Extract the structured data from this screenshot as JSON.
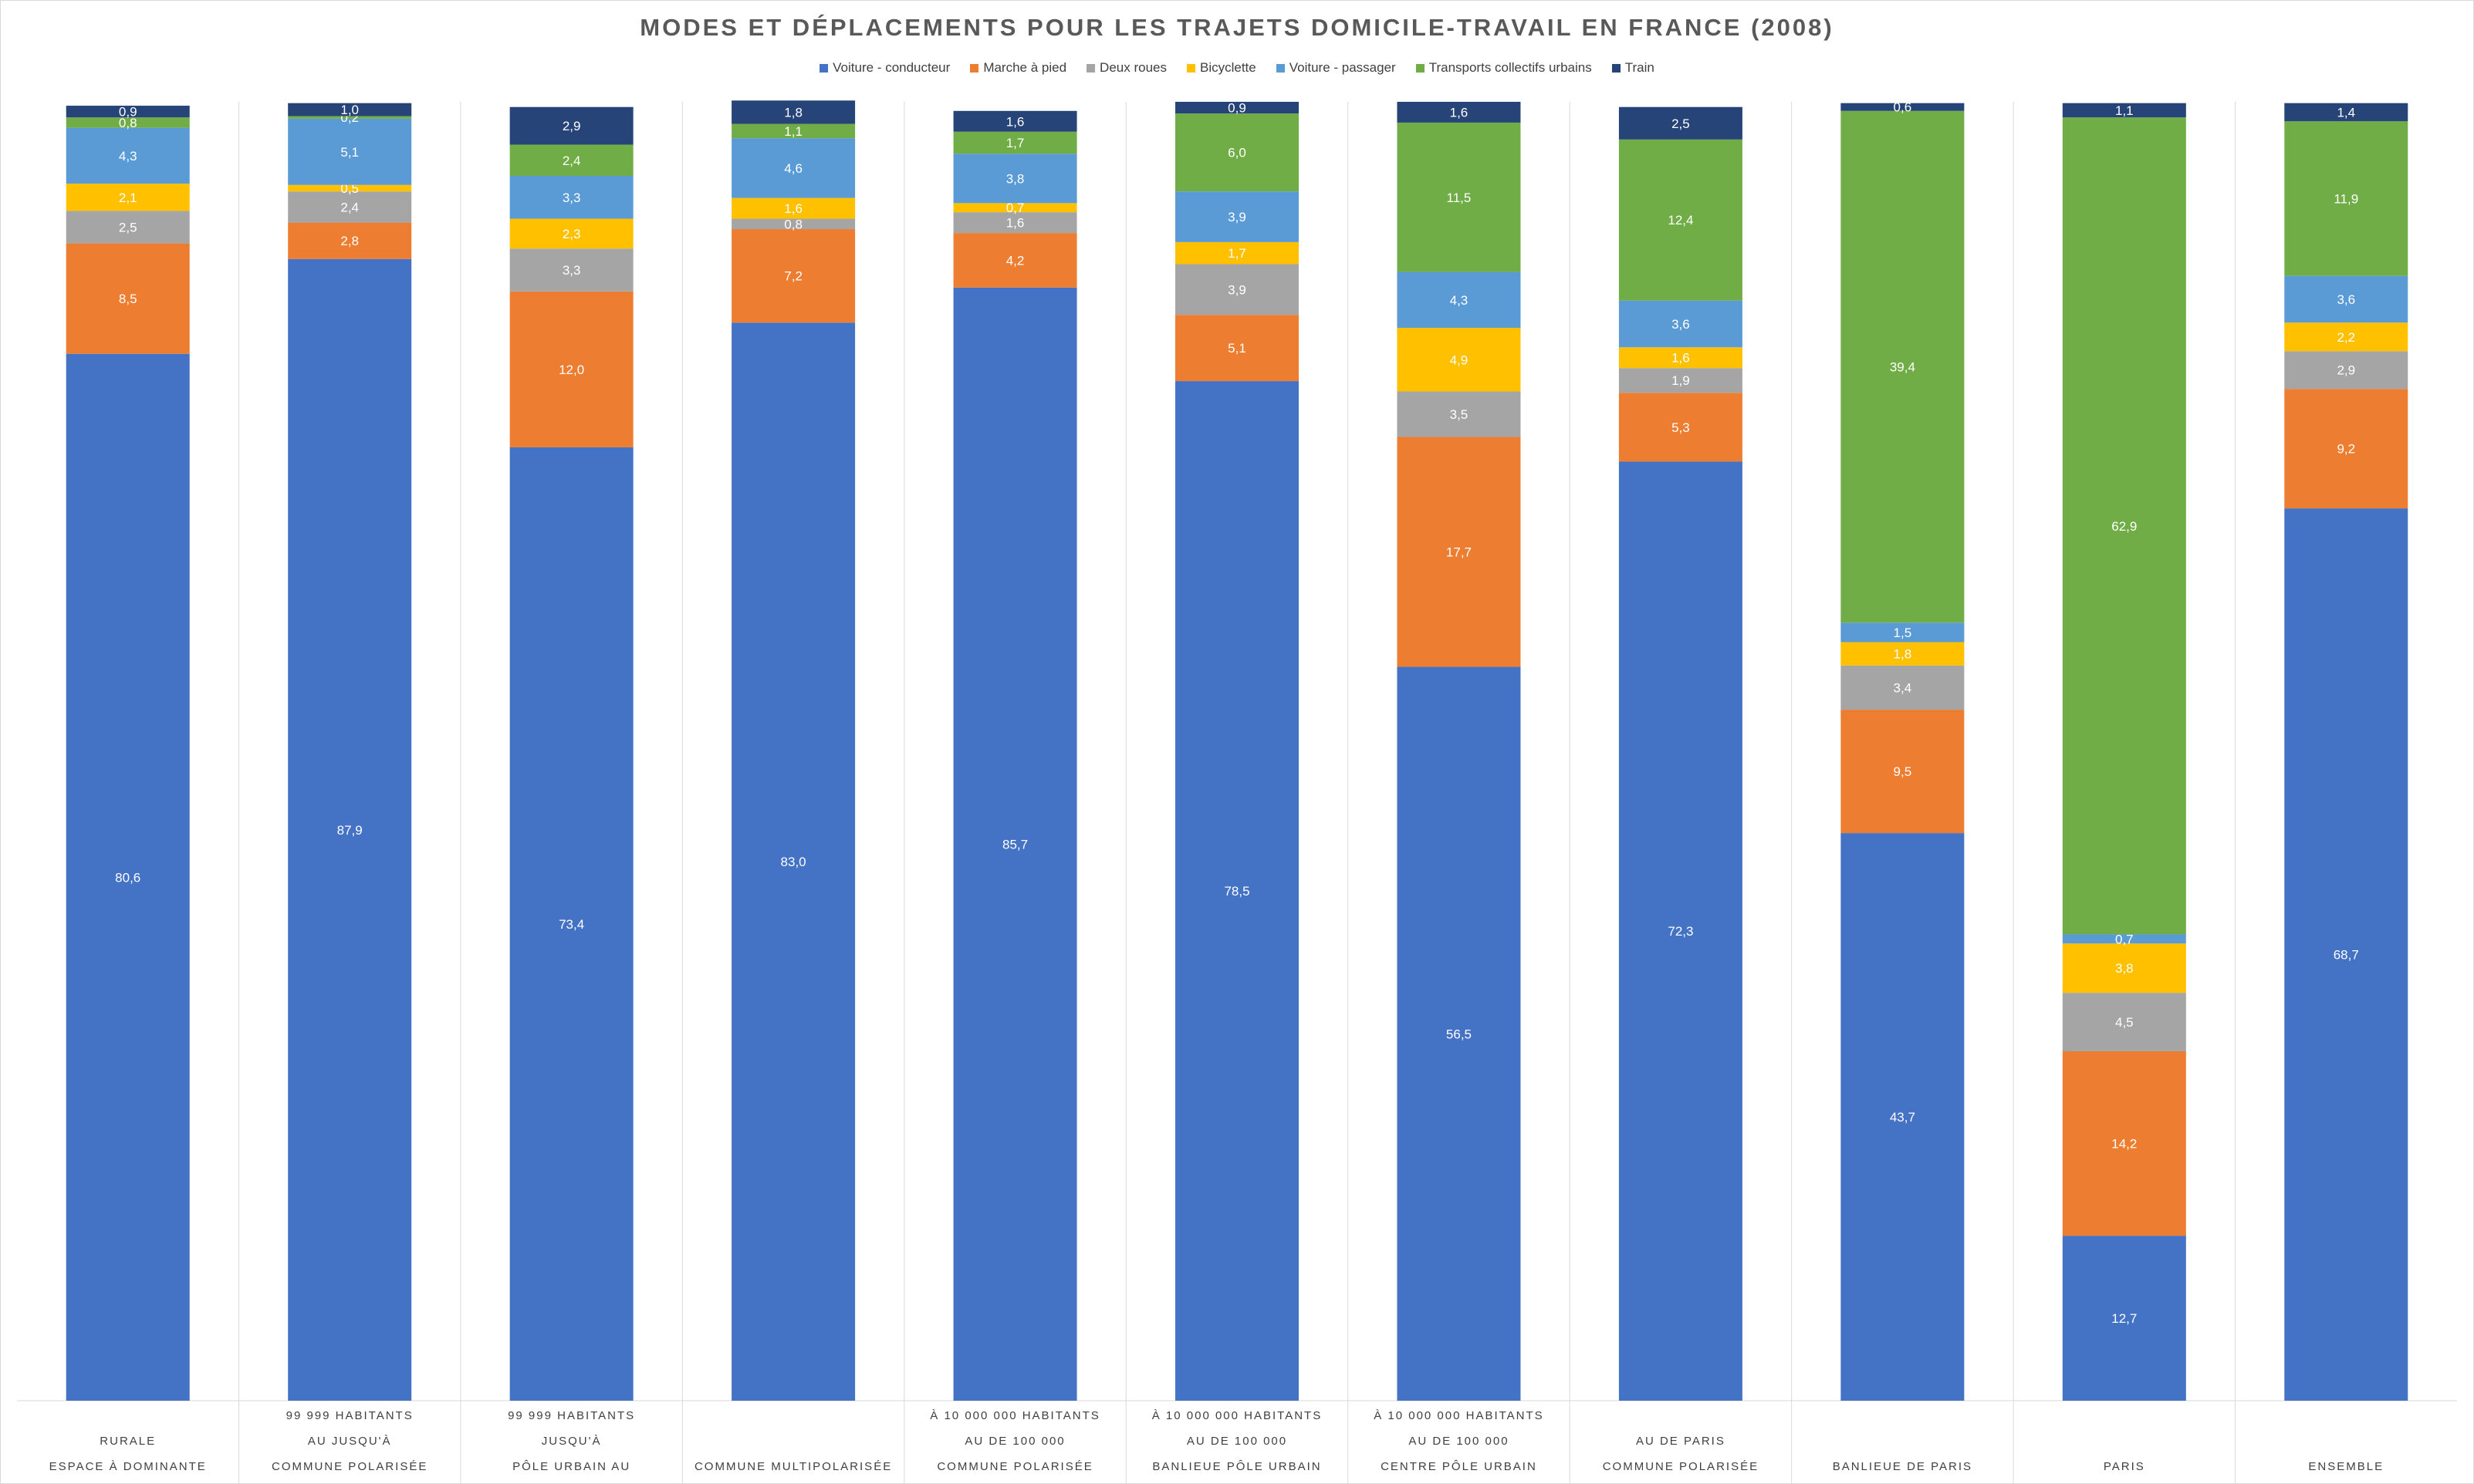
{
  "chart_data": {
    "type": "bar",
    "stacked": true,
    "title": "MODES ET DÉPLACEMENTS POUR LES TRAJETS DOMICILE-TRAVAIL EN FRANCE (2008)",
    "legend_position": "top",
    "grid": false,
    "ylim": [
      0,
      100
    ],
    "categories": [
      [
        "RURALE",
        "ESPACE À DOMINANTE"
      ],
      [
        "99 999 HABITANTS",
        "AU JUSQU'À",
        "COMMUNE POLARISÉE"
      ],
      [
        "99 999 HABITANTS",
        "JUSQU'À",
        "PÔLE URBAIN AU"
      ],
      [
        "COMMUNE MULTIPOLARISÉE"
      ],
      [
        "À 10 000 000 HABITANTS",
        "AU DE 100 000",
        "COMMUNE POLARISÉE"
      ],
      [
        "À 10 000 000 HABITANTS",
        "AU DE 100 000",
        "BANLIEUE PÔLE URBAIN"
      ],
      [
        "À 10 000 000 HABITANTS",
        "AU DE 100 000",
        "CENTRE PÔLE URBAIN"
      ],
      [
        "AU DE PARIS",
        "COMMUNE POLARISÉE"
      ],
      [
        "BANLIEUE DE PARIS"
      ],
      [
        "PARIS"
      ],
      [
        "ENSEMBLE"
      ]
    ],
    "series": [
      {
        "name": "Voiture - conducteur",
        "color": "#4472c4",
        "label_color": "#ffffff",
        "values": [
          80.6,
          87.9,
          73.4,
          83.0,
          85.7,
          78.5,
          56.5,
          72.3,
          43.7,
          12.7,
          68.7
        ],
        "labels": [
          "80,6",
          "87,9",
          "73,4",
          "83,0",
          "85,7",
          "78,5",
          "56,5",
          "72,3",
          "43,7",
          "12,7",
          "68,7"
        ]
      },
      {
        "name": "Marche à pied",
        "color": "#ed7d31",
        "label_color": "#ffffff",
        "values": [
          8.5,
          2.8,
          12.0,
          7.2,
          4.2,
          5.1,
          17.7,
          5.3,
          9.5,
          14.2,
          9.2
        ],
        "labels": [
          "8,5",
          "2,8",
          "12,0",
          "7,2",
          "4,2",
          "5,1",
          "17,7",
          "5,3",
          "9,5",
          "14,2",
          "9,2"
        ]
      },
      {
        "name": "Deux roues",
        "color": "#a5a5a5",
        "label_color": "#ffffff",
        "values": [
          2.5,
          2.4,
          3.3,
          0.8,
          1.6,
          3.9,
          3.5,
          1.9,
          3.4,
          4.5,
          2.9
        ],
        "labels": [
          "2,5",
          "2,4",
          "3,3",
          "0,8",
          "1,6",
          "3,9",
          "3,5",
          "1,9",
          "3,4",
          "4,5",
          "2,9"
        ]
      },
      {
        "name": "Bicyclette",
        "color": "#ffc000",
        "label_color": "#ffffff",
        "values": [
          2.1,
          0.5,
          2.3,
          1.6,
          0.7,
          1.7,
          4.9,
          1.6,
          1.8,
          3.8,
          2.2
        ],
        "labels": [
          "2,1",
          "0,5",
          "2,3",
          "1,6",
          "0,7",
          "1,7",
          "4,9",
          "1,6",
          "1,8",
          "3,8",
          "2,2"
        ]
      },
      {
        "name": "Voiture - passager",
        "color": "#5b9bd5",
        "label_color": "#ffffff",
        "values": [
          4.3,
          5.1,
          3.3,
          4.6,
          3.8,
          3.9,
          4.3,
          3.6,
          1.5,
          0.7,
          3.6
        ],
        "labels": [
          "4,3",
          "5,1",
          "3,3",
          "4,6",
          "3,8",
          "3,9",
          "4,3",
          "3,6",
          "1,5",
          "0,7",
          "3,6"
        ]
      },
      {
        "name": "Transports collectifs urbains",
        "color": "#70ad47",
        "label_color": "#ffffff",
        "values": [
          0.8,
          0.2,
          2.4,
          1.1,
          1.7,
          6.0,
          11.5,
          12.4,
          39.4,
          62.9,
          11.9
        ],
        "labels": [
          "0,8",
          "0,2",
          "2,4",
          "1,1",
          "1,7",
          "6,0",
          "11,5",
          "12,4",
          "39,4",
          "62,9",
          "11,9"
        ]
      },
      {
        "name": "Train",
        "color": "#264478",
        "label_color": "#ffffff",
        "values": [
          0.9,
          1.0,
          2.9,
          1.8,
          1.6,
          0.9,
          1.6,
          2.5,
          0.6,
          1.1,
          1.4
        ],
        "labels": [
          "0,9",
          "1,0",
          "2,9",
          "1,8",
          "1,6",
          "0,9",
          "1,6",
          "2,5",
          "0,6",
          "1,1",
          "1,4"
        ]
      }
    ]
  }
}
